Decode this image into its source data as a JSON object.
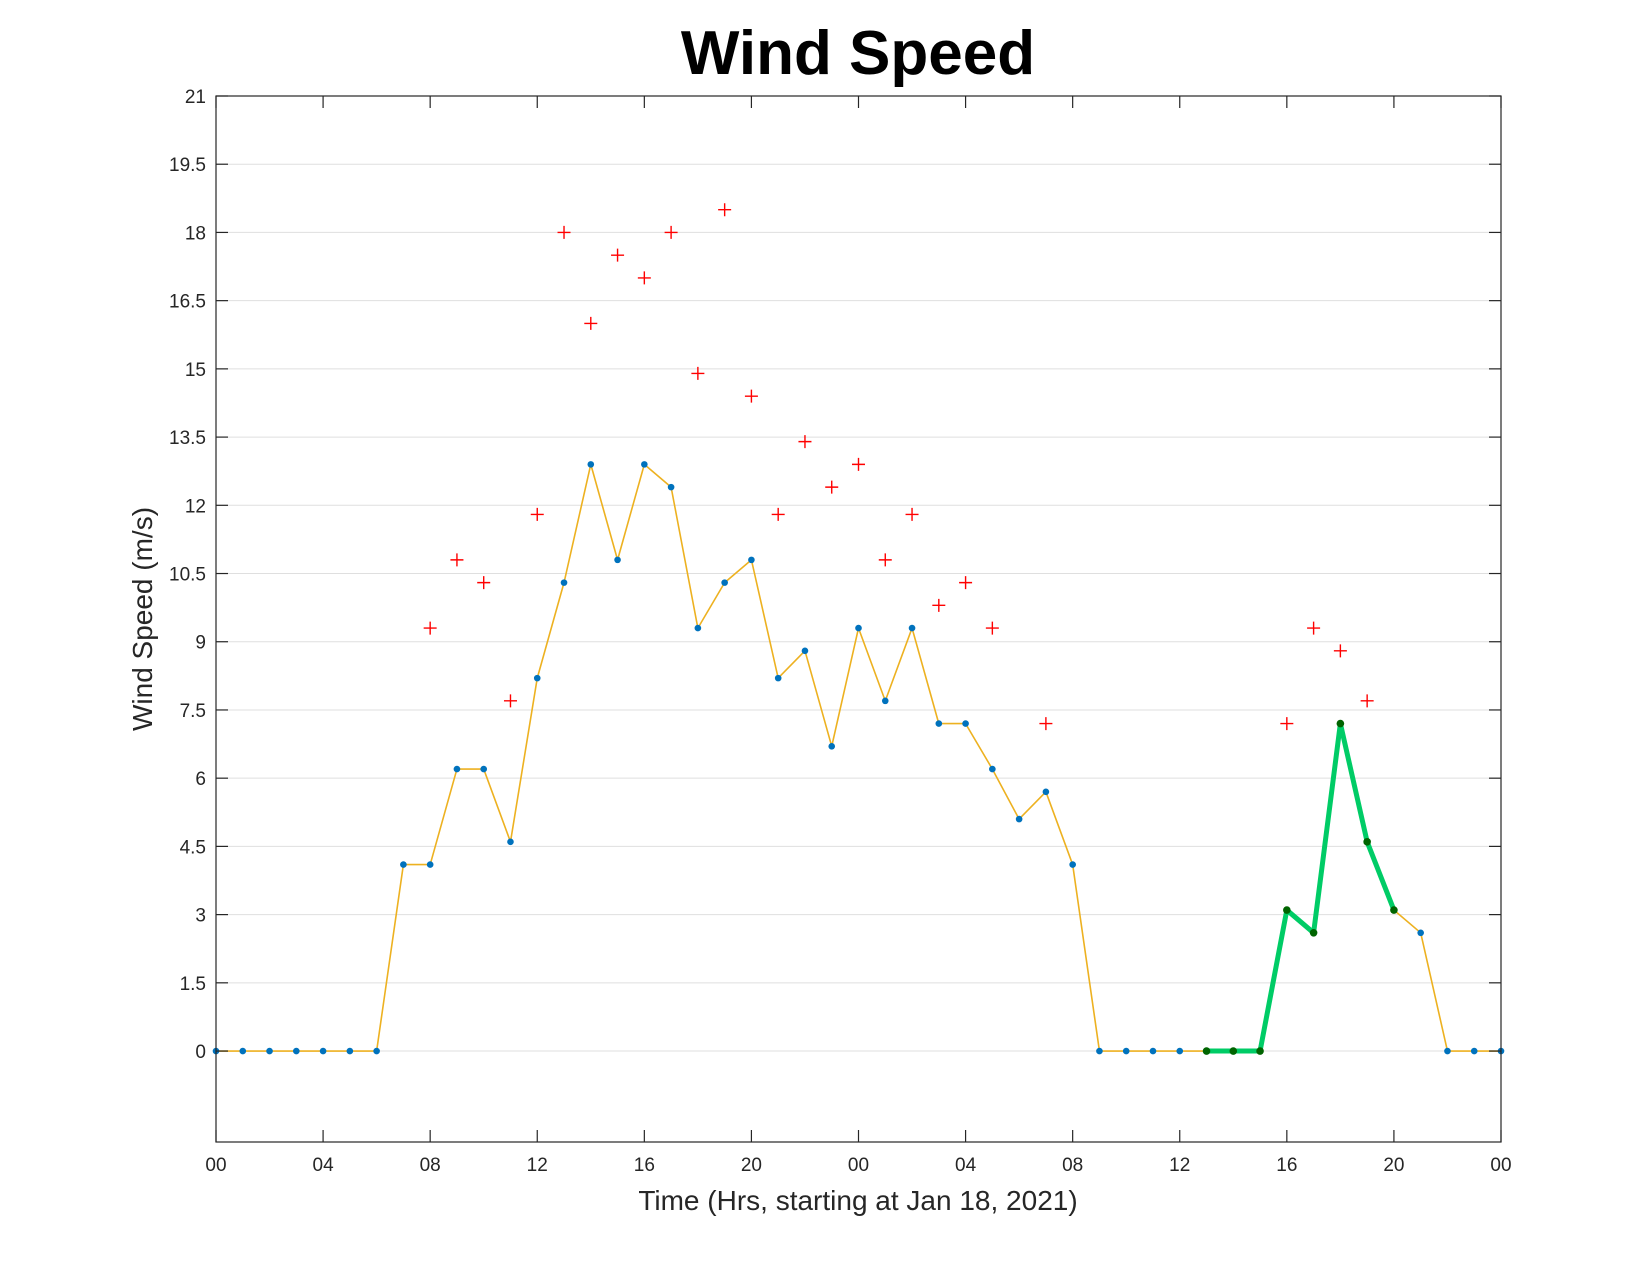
{
  "chart_data": {
    "type": "line",
    "title": "Wind Speed",
    "xlabel": "Time (Hrs, starting at Jan 18, 2021)",
    "ylabel": "Wind Speed (m/s)",
    "ylim": [
      -2,
      21
    ],
    "yticks": [
      0,
      1.5,
      3,
      4.5,
      6,
      7.5,
      9,
      10.5,
      12,
      13.5,
      15,
      16.5,
      18,
      19.5,
      21
    ],
    "ytick_labels": [
      "0",
      "1.5",
      "3",
      "4.5",
      "6",
      "7.5",
      "9",
      "10.5",
      "12",
      "13.5",
      "15",
      "16.5",
      "18",
      "19.5",
      "21"
    ],
    "xlim": [
      0,
      48
    ],
    "xticks": [
      0,
      4,
      8,
      12,
      16,
      20,
      24,
      28,
      32,
      36,
      40,
      44,
      48
    ],
    "xtick_labels": [
      "00",
      "04",
      "08",
      "12",
      "16",
      "20",
      "00",
      "04",
      "08",
      "12",
      "16",
      "20",
      "00"
    ],
    "grid": "horizontal",
    "colors": {
      "speed_line": "#edb120",
      "speed_marker": "#0072bd",
      "gust_marker": "#ff0000",
      "highlight_line": "#00cc66",
      "highlight_marker": "#006400"
    },
    "series": [
      {
        "style": "line-with-dots",
        "x": [
          0,
          1,
          2,
          3,
          4,
          5,
          6,
          7,
          8,
          9,
          10,
          11,
          12,
          13,
          14,
          15,
          16,
          17,
          18,
          19,
          20,
          21,
          22,
          23,
          24,
          25,
          26,
          27,
          28,
          29,
          30,
          31,
          32,
          33,
          34,
          35,
          36,
          37,
          38,
          39,
          40,
          41,
          42,
          43,
          44,
          45,
          46,
          47,
          48
        ],
        "values": [
          0,
          0,
          0,
          0,
          0,
          0,
          0,
          4.1,
          4.1,
          6.2,
          6.2,
          4.6,
          8.2,
          10.3,
          12.9,
          10.8,
          12.9,
          12.4,
          9.3,
          10.3,
          10.8,
          8.2,
          8.8,
          6.7,
          9.3,
          7.7,
          9.3,
          7.2,
          7.2,
          6.2,
          5.1,
          5.7,
          4.1,
          0,
          0,
          0,
          0,
          0,
          0,
          0,
          3.1,
          2.6,
          7.2,
          4.6,
          3.1,
          2.6,
          0,
          0,
          0
        ]
      },
      {
        "style": "plus-markers",
        "x": [
          8,
          9,
          10,
          11,
          12,
          13,
          14,
          15,
          16,
          17,
          18,
          19,
          20,
          21,
          22,
          23,
          24,
          25,
          26,
          27,
          28,
          29,
          31,
          40,
          41,
          42,
          43
        ],
        "values": [
          9.3,
          10.8,
          10.3,
          7.7,
          11.8,
          18,
          16,
          17.5,
          17,
          18,
          14.9,
          18.5,
          14.4,
          11.8,
          13.4,
          12.4,
          12.9,
          10.8,
          11.8,
          9.8,
          10.3,
          9.3,
          7.2,
          7.2,
          9.3,
          8.8,
          7.7
        ]
      },
      {
        "style": "highlight",
        "x": [
          37,
          38,
          39,
          40,
          41,
          42,
          43,
          44
        ],
        "values": [
          0,
          0,
          0,
          3.1,
          2.6,
          7.2,
          4.6,
          3.1
        ]
      }
    ]
  }
}
